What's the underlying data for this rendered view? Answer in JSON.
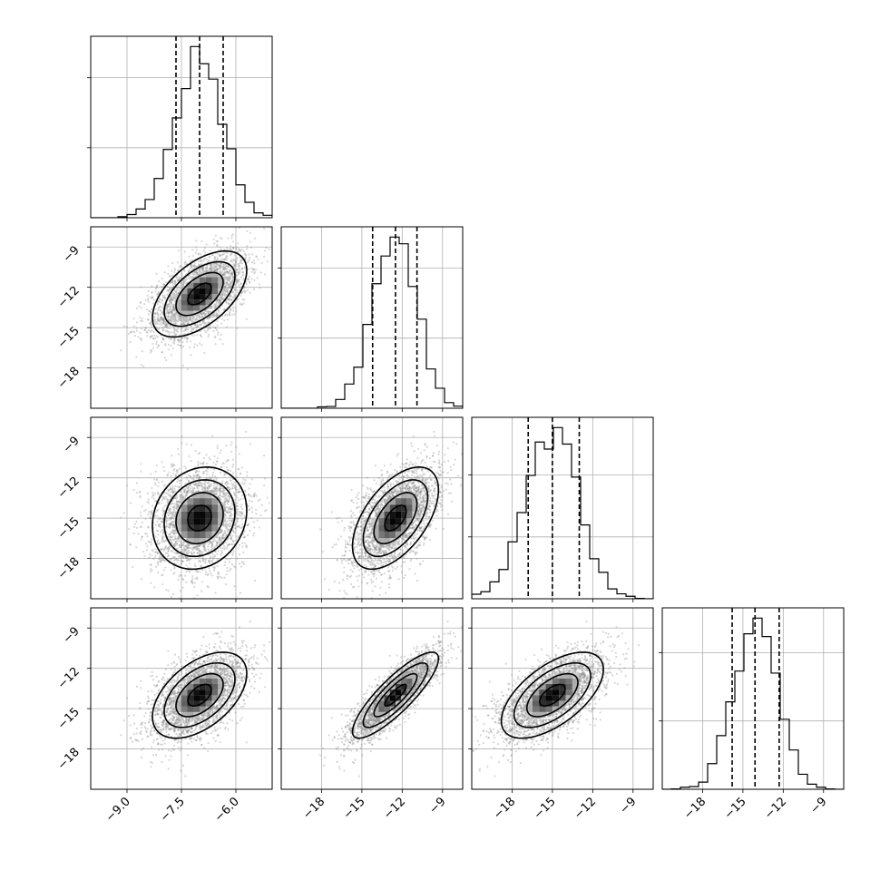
{
  "chart_data": {
    "type": "corner",
    "grid": true,
    "parameters": [
      {
        "mean": -7.0,
        "std": 0.65,
        "range": [
          -10.0,
          -5.0
        ],
        "ticks": [
          -9.0,
          -7.5,
          -6.0
        ],
        "tick_labels": [
          "−9.0",
          "−7.5",
          "−6.0"
        ],
        "quantiles": [
          -7.65,
          -7.0,
          -6.35
        ]
      },
      {
        "mean": -12.5,
        "std": 1.6,
        "range": [
          -21.0,
          -7.5
        ],
        "ticks": [
          -18,
          -15,
          -12,
          -9
        ],
        "tick_labels": [
          "−18",
          "−15",
          "−12",
          "−9"
        ],
        "quantiles": [
          -14.2,
          -12.5,
          -10.9
        ]
      },
      {
        "mean": -15.0,
        "std": 1.9,
        "range": [
          -21.0,
          -7.5
        ],
        "ticks": [
          -18,
          -15,
          -12,
          -9
        ],
        "tick_labels": [
          "−18",
          "−15",
          "−12",
          "−9"
        ],
        "quantiles": [
          -16.8,
          -15.0,
          -13.0
        ]
      },
      {
        "mean": -14.0,
        "std": 1.6,
        "range": [
          -21.0,
          -7.5
        ],
        "ticks": [
          -18,
          -15,
          -12,
          -9
        ],
        "tick_labels": [
          "−18",
          "−15",
          "−12",
          "−9"
        ],
        "quantiles": [
          -15.8,
          -14.1,
          -12.3
        ]
      }
    ],
    "correlations": [
      [
        1.0,
        0.55,
        0.15,
        0.5
      ],
      [
        0.55,
        1.0,
        0.55,
        0.85
      ],
      [
        0.15,
        0.55,
        1.0,
        0.6
      ],
      [
        0.5,
        0.85,
        0.6,
        1.0
      ]
    ],
    "contour_levels_sigma": [
      0.5,
      1.0,
      1.5,
      2.0
    ],
    "histogram_bins": 20,
    "n_samples": 3000
  }
}
